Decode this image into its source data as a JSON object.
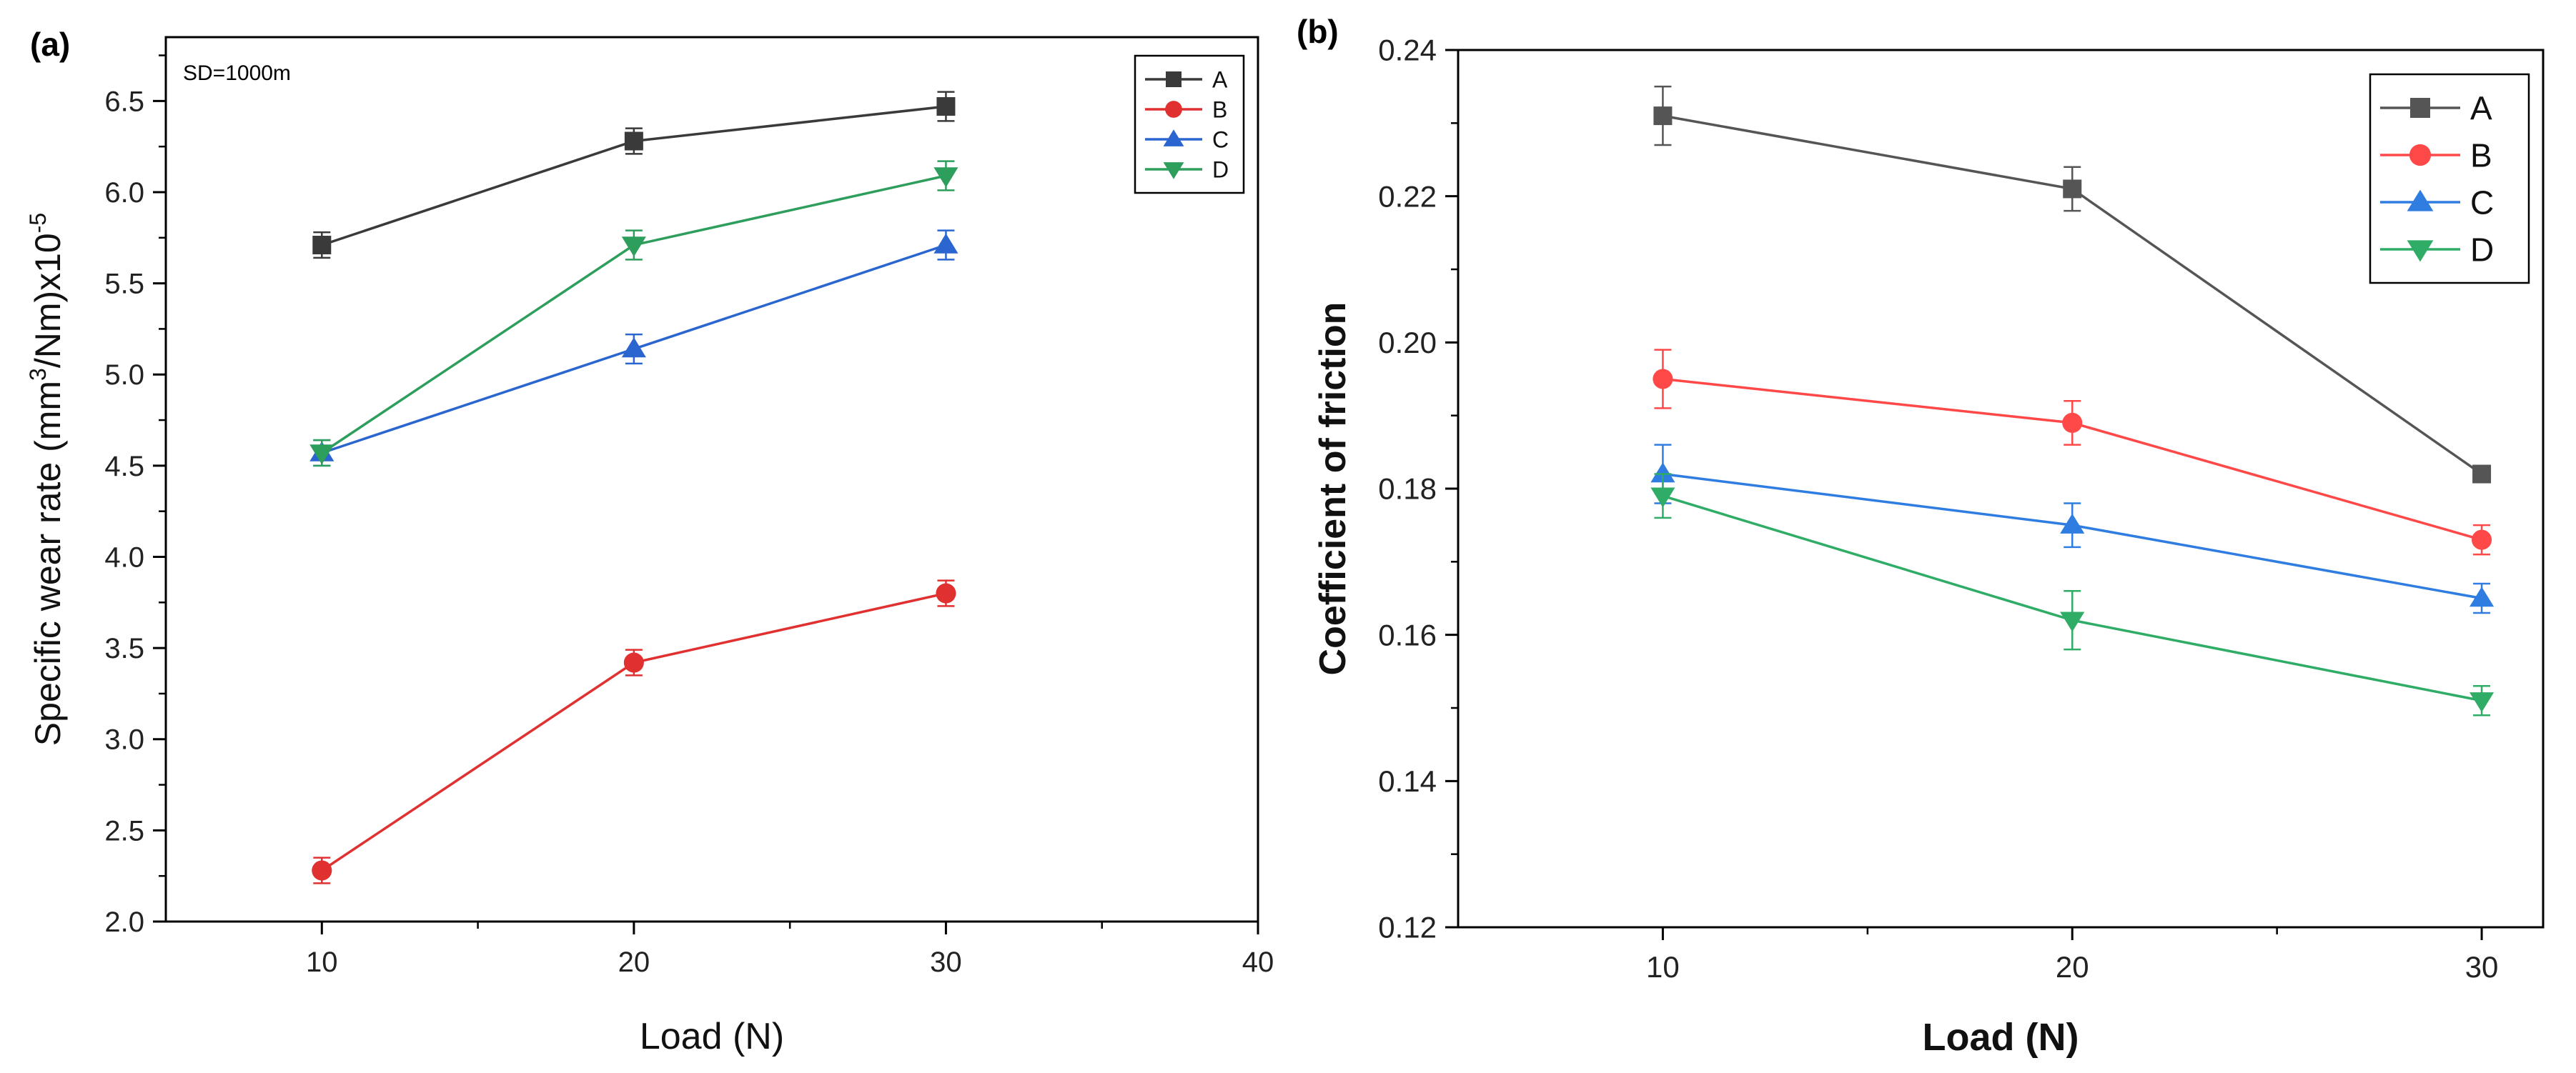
{
  "chart_data": [
    {
      "type": "line",
      "panel_label": "(a)",
      "annotation": "SD=1000m",
      "xlabel": "Load (N)",
      "ylabel_parts": [
        "Specific wear rate (mm",
        "3",
        "/Nm)x10",
        "-5"
      ],
      "x": [
        10,
        20,
        30
      ],
      "xlim": [
        5,
        40
      ],
      "ylim": [
        2.0,
        6.85
      ],
      "xticks": [
        10,
        20,
        30,
        40
      ],
      "xticks_minor": [
        15,
        25,
        35
      ],
      "yticks": [
        "2.0",
        "2.5",
        "3.0",
        "3.5",
        "4.0",
        "4.5",
        "5.0",
        "5.5",
        "6.0",
        "6.5"
      ],
      "yticks_minor": [
        2.25,
        2.75,
        3.25,
        3.75,
        4.25,
        4.75,
        5.25,
        5.75,
        6.25,
        6.75
      ],
      "legend_position": "top-right",
      "series": [
        {
          "name": "A",
          "marker": "square",
          "color": "#3a3a3a",
          "values": [
            5.71,
            6.28,
            6.47
          ],
          "errors": [
            0.07,
            0.07,
            0.08
          ]
        },
        {
          "name": "B",
          "marker": "circle",
          "color": "#e03030",
          "values": [
            2.28,
            3.42,
            3.8
          ],
          "errors": [
            0.07,
            0.07,
            0.07
          ]
        },
        {
          "name": "C",
          "marker": "triangle-up",
          "color": "#2b66d0",
          "values": [
            4.57,
            5.14,
            5.71
          ],
          "errors": [
            0.07,
            0.08,
            0.08
          ]
        },
        {
          "name": "D",
          "marker": "triangle-down",
          "color": "#2e9e5c",
          "values": [
            4.57,
            5.71,
            6.09
          ],
          "errors": [
            0.07,
            0.08,
            0.08
          ]
        }
      ]
    },
    {
      "type": "line",
      "panel_label": "(b)",
      "xlabel": "Load (N)",
      "ylabel": "Coefficient of friction",
      "x": [
        10,
        20,
        30
      ],
      "xlim": [
        5,
        31.5
      ],
      "ylim": [
        0.12,
        0.24
      ],
      "xticks": [
        10,
        20,
        30
      ],
      "xticks_minor": [
        15,
        25
      ],
      "yticks": [
        "0.12",
        "0.14",
        "0.16",
        "0.18",
        "0.20",
        "0.22",
        "0.24"
      ],
      "yticks_minor": [
        0.13,
        0.15,
        0.17,
        0.19,
        0.21,
        0.23
      ],
      "legend_position": "top-right",
      "series": [
        {
          "name": "A",
          "marker": "square",
          "color": "#555555",
          "values": [
            0.231,
            0.221,
            0.182
          ],
          "errors": [
            0.004,
            0.003,
            0.001
          ]
        },
        {
          "name": "B",
          "marker": "circle",
          "color": "#ff4848",
          "values": [
            0.195,
            0.189,
            0.173
          ],
          "errors": [
            0.004,
            0.003,
            0.002
          ]
        },
        {
          "name": "C",
          "marker": "triangle-up",
          "color": "#2f7de0",
          "values": [
            0.182,
            0.175,
            0.165
          ],
          "errors": [
            0.004,
            0.003,
            0.002
          ]
        },
        {
          "name": "D",
          "marker": "triangle-down",
          "color": "#2fac66",
          "values": [
            0.179,
            0.162,
            0.151
          ],
          "errors": [
            0.003,
            0.004,
            0.002
          ]
        }
      ]
    }
  ]
}
